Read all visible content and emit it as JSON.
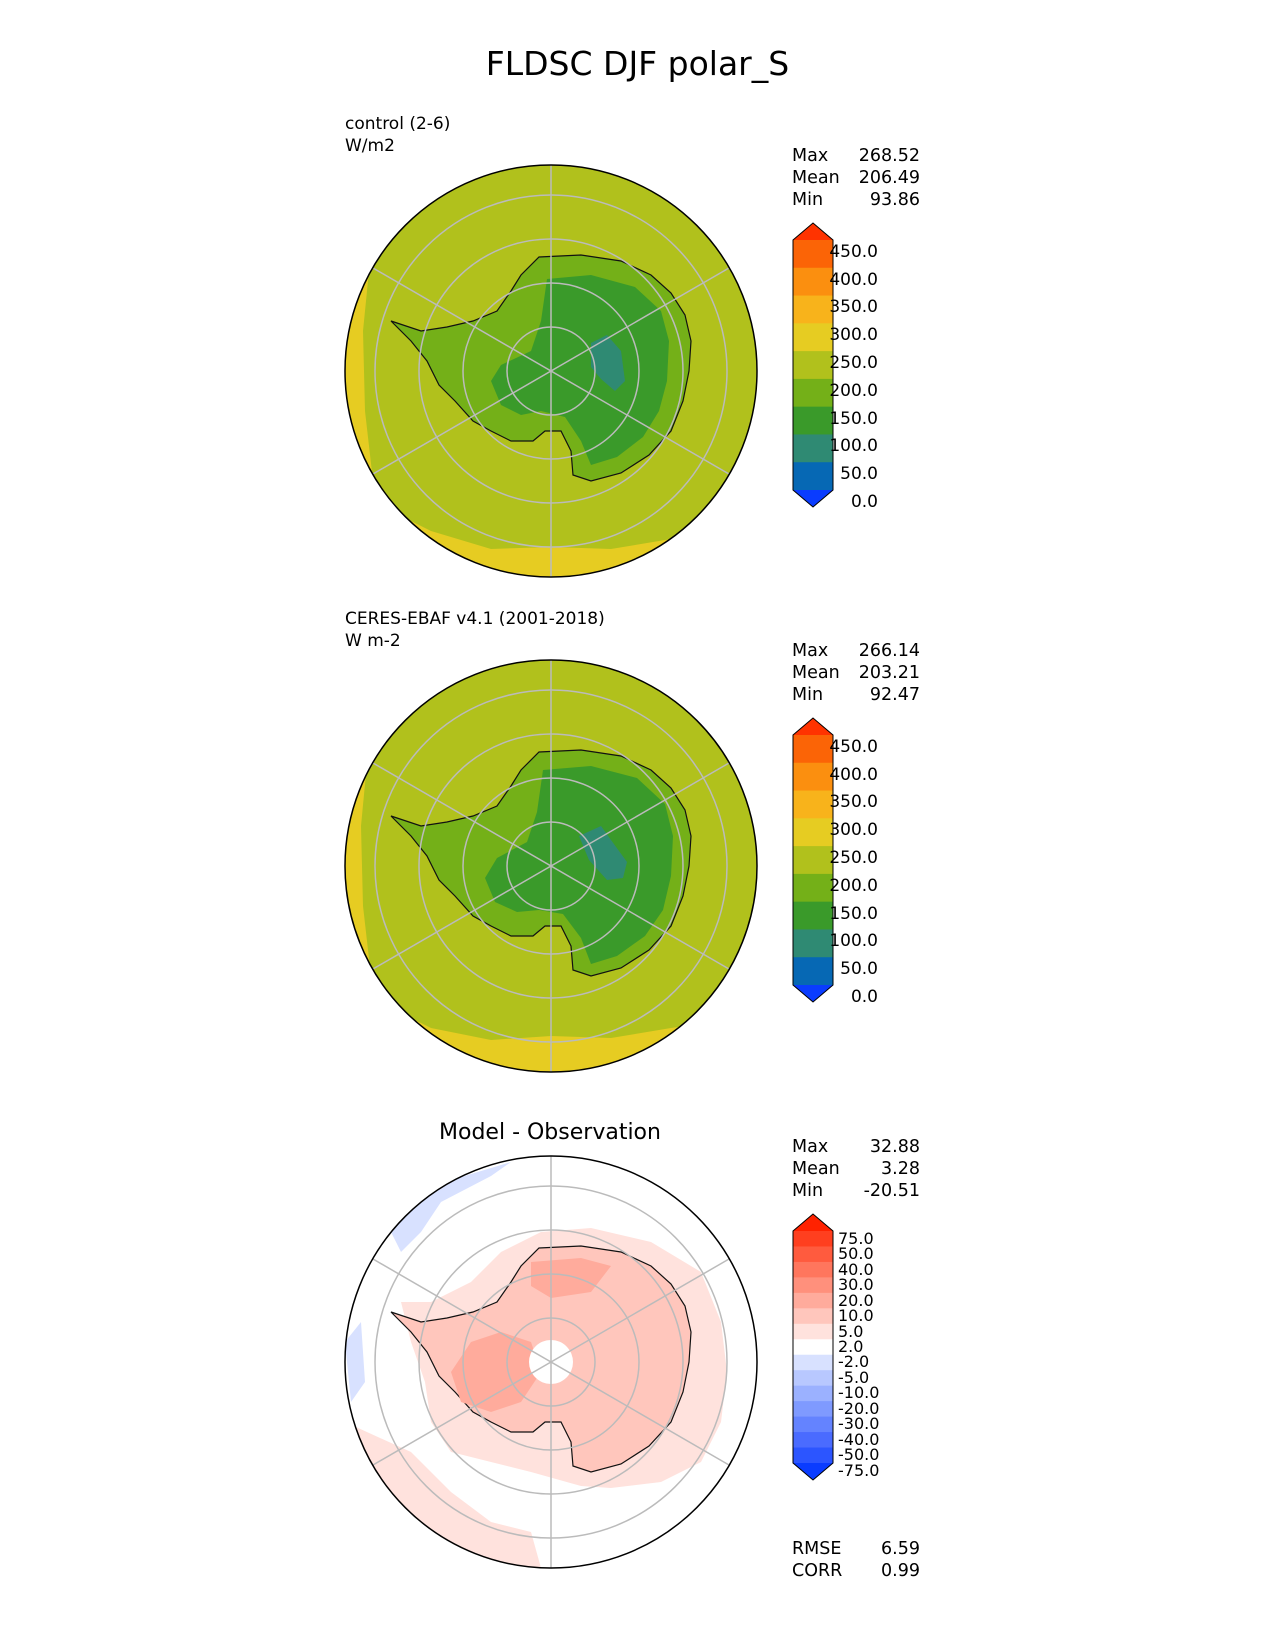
{
  "page_title": "FLDSC DJF polar_S",
  "panels": [
    {
      "name": "control (2-6)",
      "units": "W/m2",
      "stats": {
        "max_label": "Max",
        "max": "268.52",
        "mean_label": "Mean",
        "mean": "206.49",
        "min_label": "Min",
        "min": "93.86"
      },
      "colorbar_ticks": [
        "450.0",
        "400.0",
        "350.0",
        "300.0",
        "250.0",
        "200.0",
        "150.0",
        "100.0",
        "50.0",
        "0.0"
      ]
    },
    {
      "name": "CERES-EBAF v4.1 (2001-2018)",
      "units": "W m-2",
      "stats": {
        "max_label": "Max",
        "max": "266.14",
        "mean_label": "Mean",
        "mean": "203.21",
        "min_label": "Min",
        "min": "92.47"
      },
      "colorbar_ticks": [
        "450.0",
        "400.0",
        "350.0",
        "300.0",
        "250.0",
        "200.0",
        "150.0",
        "100.0",
        "50.0",
        "0.0"
      ]
    },
    {
      "title": "Model - Observation",
      "stats": {
        "max_label": "Max",
        "max": "32.88",
        "mean_label": "Mean",
        "mean": "3.28",
        "min_label": "Min",
        "min": "-20.51"
      },
      "colorbar_ticks": [
        "75.0",
        "50.0",
        "40.0",
        "30.0",
        "20.0",
        "10.0",
        "5.0",
        "2.0",
        "-2.0",
        "-5.0",
        "-10.0",
        "-20.0",
        "-30.0",
        "-40.0",
        "-50.0",
        "-75.0"
      ],
      "metrics": {
        "rmse_label": "RMSE",
        "rmse": "6.59",
        "corr_label": "CORR",
        "corr": "0.99"
      }
    }
  ],
  "chart_data": [
    {
      "type": "heatmap",
      "projection": "south polar stereographic",
      "title": "control (2-6)",
      "units": "W/m2",
      "max": 268.52,
      "mean": 206.49,
      "min": 93.86,
      "levels": [
        0,
        50,
        100,
        150,
        200,
        250,
        300,
        350,
        400,
        450
      ],
      "colors": [
        "#0a3cff",
        "#0668b4",
        "#2f8a73",
        "#3a9a2a",
        "#74b018",
        "#b1c11c",
        "#e6cc22",
        "#f8b31b",
        "#fb8f0f",
        "#fb6406",
        "#ff3300"
      ],
      "extend": "both"
    },
    {
      "type": "heatmap",
      "projection": "south polar stereographic",
      "title": "CERES-EBAF v4.1 (2001-2018)",
      "units": "W m-2",
      "max": 266.14,
      "mean": 203.21,
      "min": 92.47,
      "levels": [
        0,
        50,
        100,
        150,
        200,
        250,
        300,
        350,
        400,
        450
      ],
      "colors": [
        "#0a3cff",
        "#0668b4",
        "#2f8a73",
        "#3a9a2a",
        "#74b018",
        "#b1c11c",
        "#e6cc22",
        "#f8b31b",
        "#fb8f0f",
        "#fb6406",
        "#ff3300"
      ],
      "extend": "both"
    },
    {
      "type": "heatmap",
      "projection": "south polar stereographic",
      "title": "Model - Observation",
      "max": 32.88,
      "mean": 3.28,
      "min": -20.51,
      "rmse": 6.59,
      "corr": 0.99,
      "levels": [
        -75,
        -50,
        -40,
        -30,
        -20,
        -10,
        -5,
        -2,
        2,
        5,
        10,
        20,
        30,
        40,
        50,
        75
      ],
      "colors": [
        "#0a3cff",
        "#2c55ff",
        "#4a6bff",
        "#6483ff",
        "#7f9aff",
        "#9bb1ff",
        "#b8c8ff",
        "#d8e1ff",
        "#ffffff",
        "#ffe2dd",
        "#ffc6bc",
        "#ffab9c",
        "#ff907c",
        "#ff765d",
        "#ff5b3e",
        "#ff3f1f",
        "#ff2200"
      ],
      "extend": "both"
    }
  ]
}
